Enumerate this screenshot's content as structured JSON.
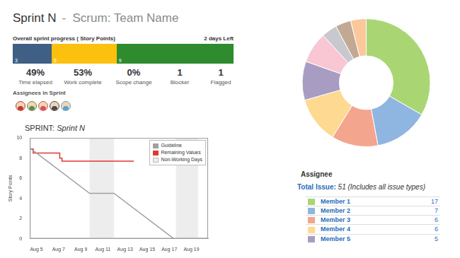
{
  "header": {
    "title": "Sprint N",
    "subtitle": "-  Scrum: Team Name"
  },
  "progress": {
    "title": "Overall sprint progress ( Story Points)",
    "time_left": "2 days Left",
    "segments": [
      {
        "value": 3,
        "color": "#3f5f85"
      },
      {
        "value": 5,
        "color": "#fcc10f"
      },
      {
        "value": 9,
        "color": "#2e8b2e"
      }
    ]
  },
  "stats": [
    {
      "value": "49%",
      "label": "Time elapsed"
    },
    {
      "value": "53%",
      "label": "Work complete"
    },
    {
      "value": "0%",
      "label": "Scope change"
    },
    {
      "value": "1",
      "label": "Blocker"
    },
    {
      "value": "1",
      "label": "Flagged"
    }
  ],
  "assignees_title": "Assignees in Sprint",
  "chart_data": [
    {
      "type": "line",
      "title": "SPRINT: Sprint N",
      "y_label": "Story Points",
      "xlim": [
        4.4,
        20.5
      ],
      "xticks": [
        {
          "value": 5,
          "label": "Aug 5"
        },
        {
          "value": 7,
          "label": "Aug 7"
        },
        {
          "value": 9,
          "label": "Aug 9"
        },
        {
          "value": 11,
          "label": "Aug 11"
        },
        {
          "value": 13,
          "label": "Aug 13"
        },
        {
          "value": 15,
          "label": "Aug 15"
        },
        {
          "value": 17,
          "label": "Aug 17"
        },
        {
          "value": 19,
          "label": "Aug 19"
        }
      ],
      "ylim": [
        0,
        10
      ],
      "yticks": [
        0,
        2,
        4,
        6,
        8,
        10
      ],
      "grid": false,
      "legend": "top-right",
      "series": [
        {
          "name": "Guideline",
          "color": "#a0a0a0",
          "line_style": "solid",
          "x": [
            4.4,
            9.8,
            12,
            17.4,
            20.5
          ],
          "values": [
            9,
            4.5,
            4.5,
            0,
            0
          ]
        },
        {
          "name": "Remaining Values",
          "color": "#e0392b",
          "line_style": "steps",
          "x": [
            4.4,
            4.7,
            7.1,
            7.3,
            12,
            13.8
          ],
          "values": [
            9,
            8.9,
            8.5,
            8,
            7.7,
            7.7
          ]
        }
      ],
      "non_working_days": {
        "name": "Non-Working Days",
        "color": "#ededed",
        "ranges": [
          [
            9.8,
            12
          ],
          [
            17.6,
            19.6
          ]
        ]
      }
    },
    {
      "type": "doughnut",
      "title": "Assignee",
      "subtitle": "Total Issue: 51 (Includes all issue types)",
      "categories": [
        "Member 1",
        "Member 2",
        "Member 3",
        "Member 4",
        "Member 5",
        null,
        null,
        null,
        null
      ],
      "values": [
        17,
        7,
        6,
        6,
        5,
        4,
        2,
        2,
        2
      ],
      "colors": [
        "#a9d672",
        "#8fb6e0",
        "#f4a58e",
        "#fdd991",
        "#a99cc3",
        "#f9c6d3",
        "#c8c8ce",
        "#c2a994",
        "#fcc79b"
      ],
      "legend": "bottom",
      "data_labels": false
    }
  ]
}
